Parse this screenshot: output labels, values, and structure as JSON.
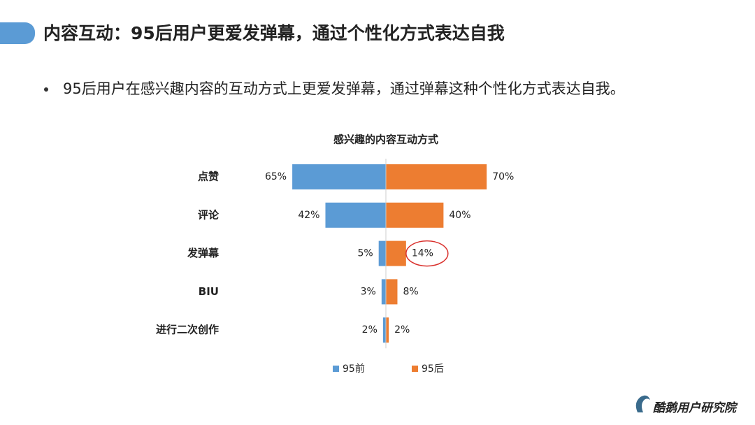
{
  "slide": {
    "title": "内容互动：95后用户更爱发弹幕，通过个性化方式表达自我",
    "bullet": "95后用户在感兴趣内容的互动方式上更爱发弹幕，通过弹幕这种个性化方式表达自我。",
    "logo": "酷鹅用户研究院"
  },
  "chart_data": {
    "type": "bar",
    "orientation": "horizontal-butterfly",
    "title": "感兴趣的内容互动方式",
    "categories": [
      "点赞",
      "评论",
      "发弹幕",
      "BIU",
      "进行二次创作"
    ],
    "series": [
      {
        "name": "95前",
        "color": "#5b9bd5",
        "values": [
          65,
          42,
          5,
          3,
          2
        ],
        "value_labels": [
          "65%",
          "42%",
          "5%",
          "3%",
          "2%"
        ]
      },
      {
        "name": "95后",
        "color": "#ed7d31",
        "values": [
          70,
          40,
          14,
          8,
          2
        ],
        "value_labels": [
          "70%",
          "40%",
          "14%",
          "8%",
          "2%"
        ]
      }
    ]
  }
}
